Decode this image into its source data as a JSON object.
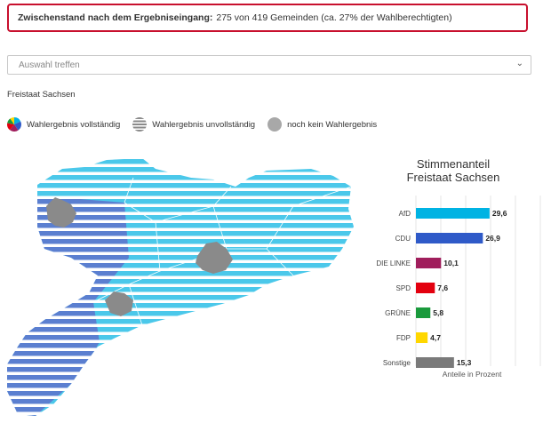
{
  "banner": {
    "label": "Zwischenstand nach dem Ergebniseingang:",
    "text": "275 von 419 Gemeinden (ca. 27% der Wahlberechtigten)"
  },
  "select": {
    "value": "Auswahl treffen",
    "icon": "chevron-down-icon"
  },
  "region": "Freistaat Sachsen",
  "legend": [
    {
      "label": "Wahlergebnis vollständig",
      "icon": "pie-complete-icon"
    },
    {
      "label": "Wahlergebnis unvollständig",
      "icon": "striped-circle-icon"
    },
    {
      "label": "noch kein Wahlergebnis",
      "icon": "grey-circle-icon"
    }
  ],
  "chart_title_line1": "Stimmenanteil",
  "chart_title_line2": "Freistaat Sachsen",
  "colors": {
    "banner_border": "#c8102e",
    "afd_fill": "#4bc8ea",
    "cdu_fill": "#5b7fd0",
    "no_result": "#8a8a8a"
  },
  "chart_data": {
    "type": "bar",
    "orientation": "horizontal",
    "title": "Stimmenanteil Freistaat Sachsen",
    "xlabel": "Anteile in Prozent",
    "categories": [
      "AfD",
      "CDU",
      "DIE LINKE",
      "SPD",
      "GRÜNE",
      "FDP",
      "Sonstige"
    ],
    "values": [
      29.6,
      26.9,
      10.1,
      7.6,
      5.8,
      4.7,
      15.3
    ],
    "value_labels": [
      "29,6",
      "26,9",
      "10,1",
      "7,6",
      "5,8",
      "4,7",
      "15,3"
    ],
    "colors": [
      "#00b3e3",
      "#2f5ac8",
      "#a01e5c",
      "#e3000f",
      "#1a9a3c",
      "#ffd700",
      "#7a7a7a"
    ],
    "xlim": [
      0,
      50
    ],
    "grid": true
  }
}
